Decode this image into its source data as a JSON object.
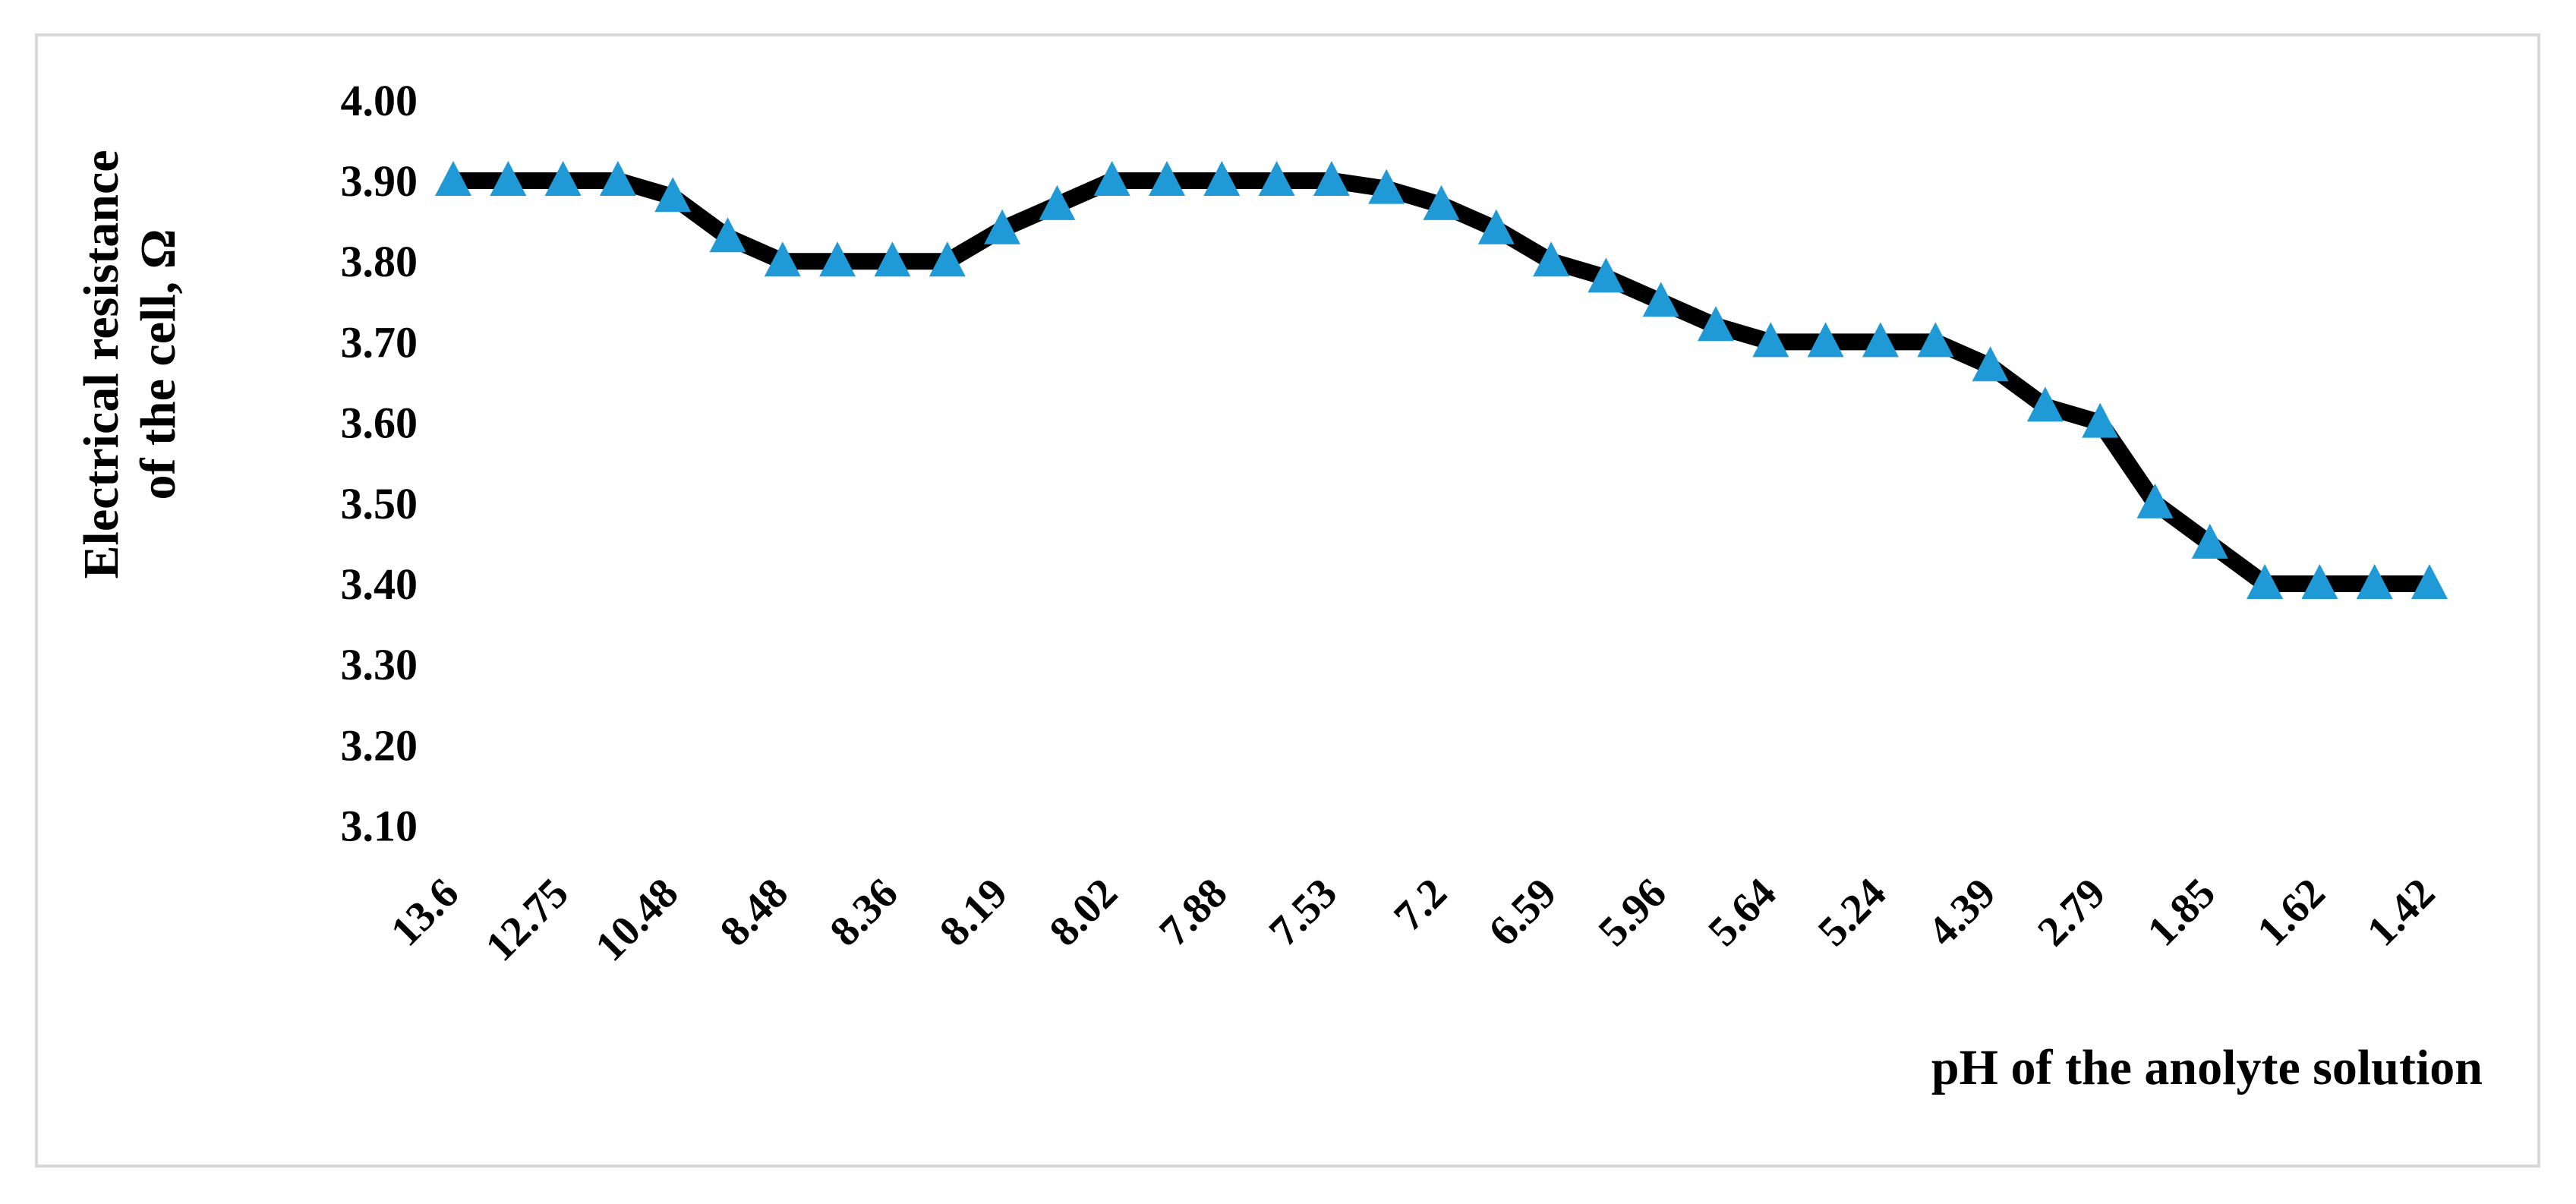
{
  "chart_data": {
    "type": "line",
    "title": "",
    "xlabel": "pH of the anolyte solution",
    "ylabel_lines": [
      "Electrical resistance",
      "of the cell, Ω"
    ],
    "ylim": [
      3.05,
      4.0
    ],
    "yticks": [
      3.1,
      3.2,
      3.3,
      3.4,
      3.5,
      3.6,
      3.7,
      3.8,
      3.9,
      4.0
    ],
    "ytick_labels": [
      "3.10",
      "3.20",
      "3.30",
      "3.40",
      "3.50",
      "3.60",
      "3.70",
      "3.80",
      "3.90",
      "4.00"
    ],
    "xtick_labels": [
      "13.6",
      "12.75",
      "10.48",
      "8.48",
      "8.36",
      "8.19",
      "8.02",
      "7.88",
      "7.53",
      "7.2",
      "6.59",
      "5.96",
      "5.64",
      "5.24",
      "4.39",
      "2.79",
      "1.85",
      "1.62",
      "1.42"
    ],
    "grid": false,
    "legend": "none",
    "line_color": "#000000",
    "marker_color": "#1f9ad6",
    "marker": "triangle",
    "series": [
      {
        "values": [
          3.9,
          3.9,
          3.9,
          3.9,
          3.88,
          3.83,
          3.8,
          3.8,
          3.8,
          3.8,
          3.84,
          3.87,
          3.9,
          3.9,
          3.9,
          3.9,
          3.9,
          3.89,
          3.87,
          3.84,
          3.8,
          3.78,
          3.75,
          3.72,
          3.7,
          3.7,
          3.7,
          3.7,
          3.67,
          3.62,
          3.6,
          3.5,
          3.45,
          3.4,
          3.4,
          3.4,
          3.4
        ]
      }
    ]
  }
}
